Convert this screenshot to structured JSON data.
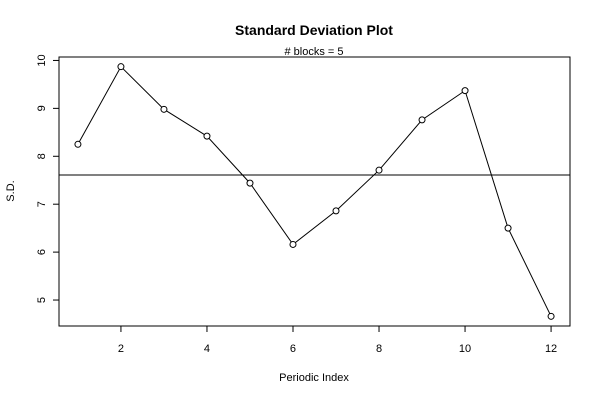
{
  "chart_data": {
    "type": "line",
    "title": "Standard Deviation Plot",
    "subtitle": "# blocks =  5",
    "xlabel": "Periodic Index",
    "ylabel": "S.D.",
    "x": [
      1,
      2,
      3,
      4,
      5,
      6,
      7,
      8,
      9,
      10,
      11,
      12
    ],
    "values": [
      8.25,
      9.87,
      8.98,
      8.42,
      7.44,
      6.16,
      6.86,
      7.71,
      8.76,
      9.37,
      6.5,
      4.66
    ],
    "reference_line": 7.61,
    "xlim": [
      0.56,
      12.44
    ],
    "ylim": [
      4.458,
      10.072
    ],
    "xticks": [
      2,
      4,
      6,
      8,
      10,
      12
    ],
    "yticks": [
      5,
      6,
      7,
      8,
      9,
      10
    ],
    "markers": "open-circle",
    "grid": false,
    "colors": {
      "line": "#000000",
      "reference": "#000000",
      "background": "#ffffff"
    }
  }
}
